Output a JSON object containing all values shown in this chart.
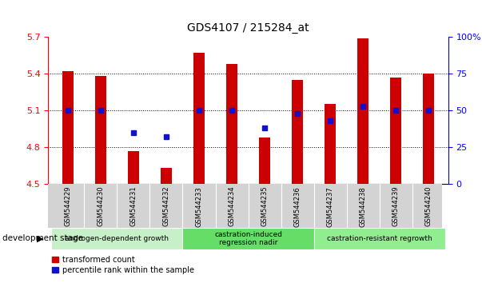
{
  "title": "GDS4107 / 215284_at",
  "samples": [
    "GSM544229",
    "GSM544230",
    "GSM544231",
    "GSM544232",
    "GSM544233",
    "GSM544234",
    "GSM544235",
    "GSM544236",
    "GSM544237",
    "GSM544238",
    "GSM544239",
    "GSM544240"
  ],
  "red_values": [
    5.42,
    5.38,
    4.77,
    4.63,
    5.57,
    5.48,
    4.88,
    5.35,
    5.15,
    5.69,
    5.37,
    5.4
  ],
  "blue_values": [
    50,
    50,
    35,
    32,
    50,
    50,
    38,
    48,
    43,
    53,
    50,
    50
  ],
  "ylim_left": [
    4.5,
    5.7
  ],
  "ylim_right": [
    0,
    100
  ],
  "yticks_left": [
    4.5,
    4.8,
    5.1,
    5.4,
    5.7
  ],
  "yticks_right": [
    0,
    25,
    50,
    75,
    100
  ],
  "ytick_right_labels": [
    "0",
    "25",
    "50",
    "75",
    "100%"
  ],
  "grid_lines": [
    4.8,
    5.1,
    5.4
  ],
  "bar_color": "#cc0000",
  "dot_color": "#1111cc",
  "plot_bg": "#ffffff",
  "tick_gray_bg": "#d3d3d3",
  "group_info": [
    {
      "label": "androgen-dependent growth",
      "start": 0,
      "end": 3,
      "color": "#c8f0c8"
    },
    {
      "label": "castration-induced\nregression nadir",
      "start": 4,
      "end": 7,
      "color": "#66dd66"
    },
    {
      "label": "castration-resistant regrowth",
      "start": 8,
      "end": 11,
      "color": "#90ee90"
    }
  ],
  "dev_stage_label": "development stage",
  "legend_labels": [
    "transformed count",
    "percentile rank within the sample"
  ],
  "bar_width": 0.35
}
